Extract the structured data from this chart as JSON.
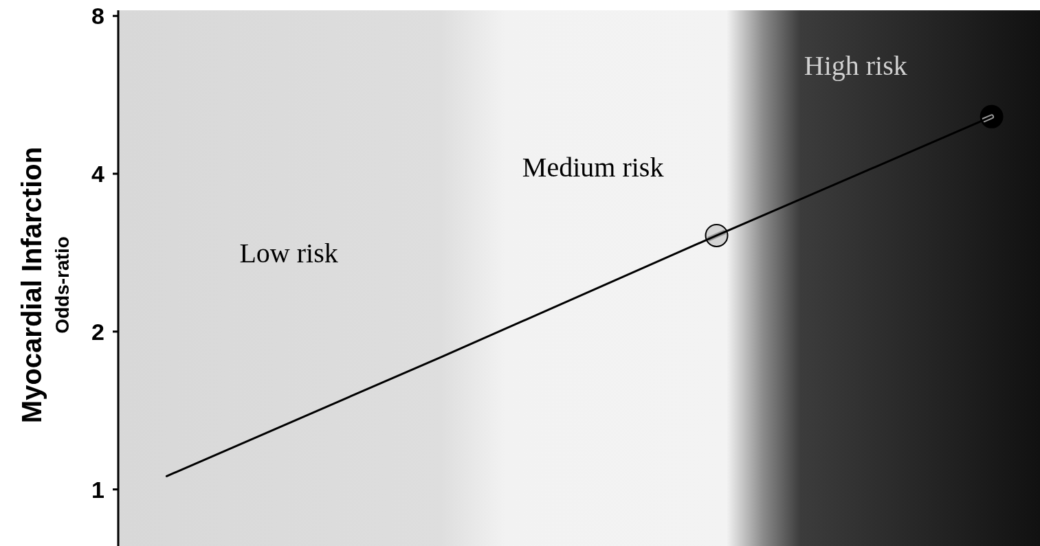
{
  "chart_data": {
    "type": "line",
    "ylabel": "Myocardial Infarction\nOdds-ratio",
    "log": "y",
    "ylim": [
      0.78,
      8.2
    ],
    "yticks": [
      1,
      2,
      4,
      8
    ],
    "tick_labels": "y",
    "grid": false,
    "legend": false,
    "categories": [
      null,
      null,
      null,
      null
    ],
    "series": [
      {
        "color": "#000000",
        "marker": "circle",
        "colors": [
          null,
          null,
          "#d4d4d4",
          "#000000"
        ],
        "line_style": "solid",
        "values": [
          1.06,
          1.79,
          3.05,
          5.14
        ]
      }
    ],
    "annotations": [
      "Low risk",
      "Medium risk",
      "High risk"
    ]
  }
}
